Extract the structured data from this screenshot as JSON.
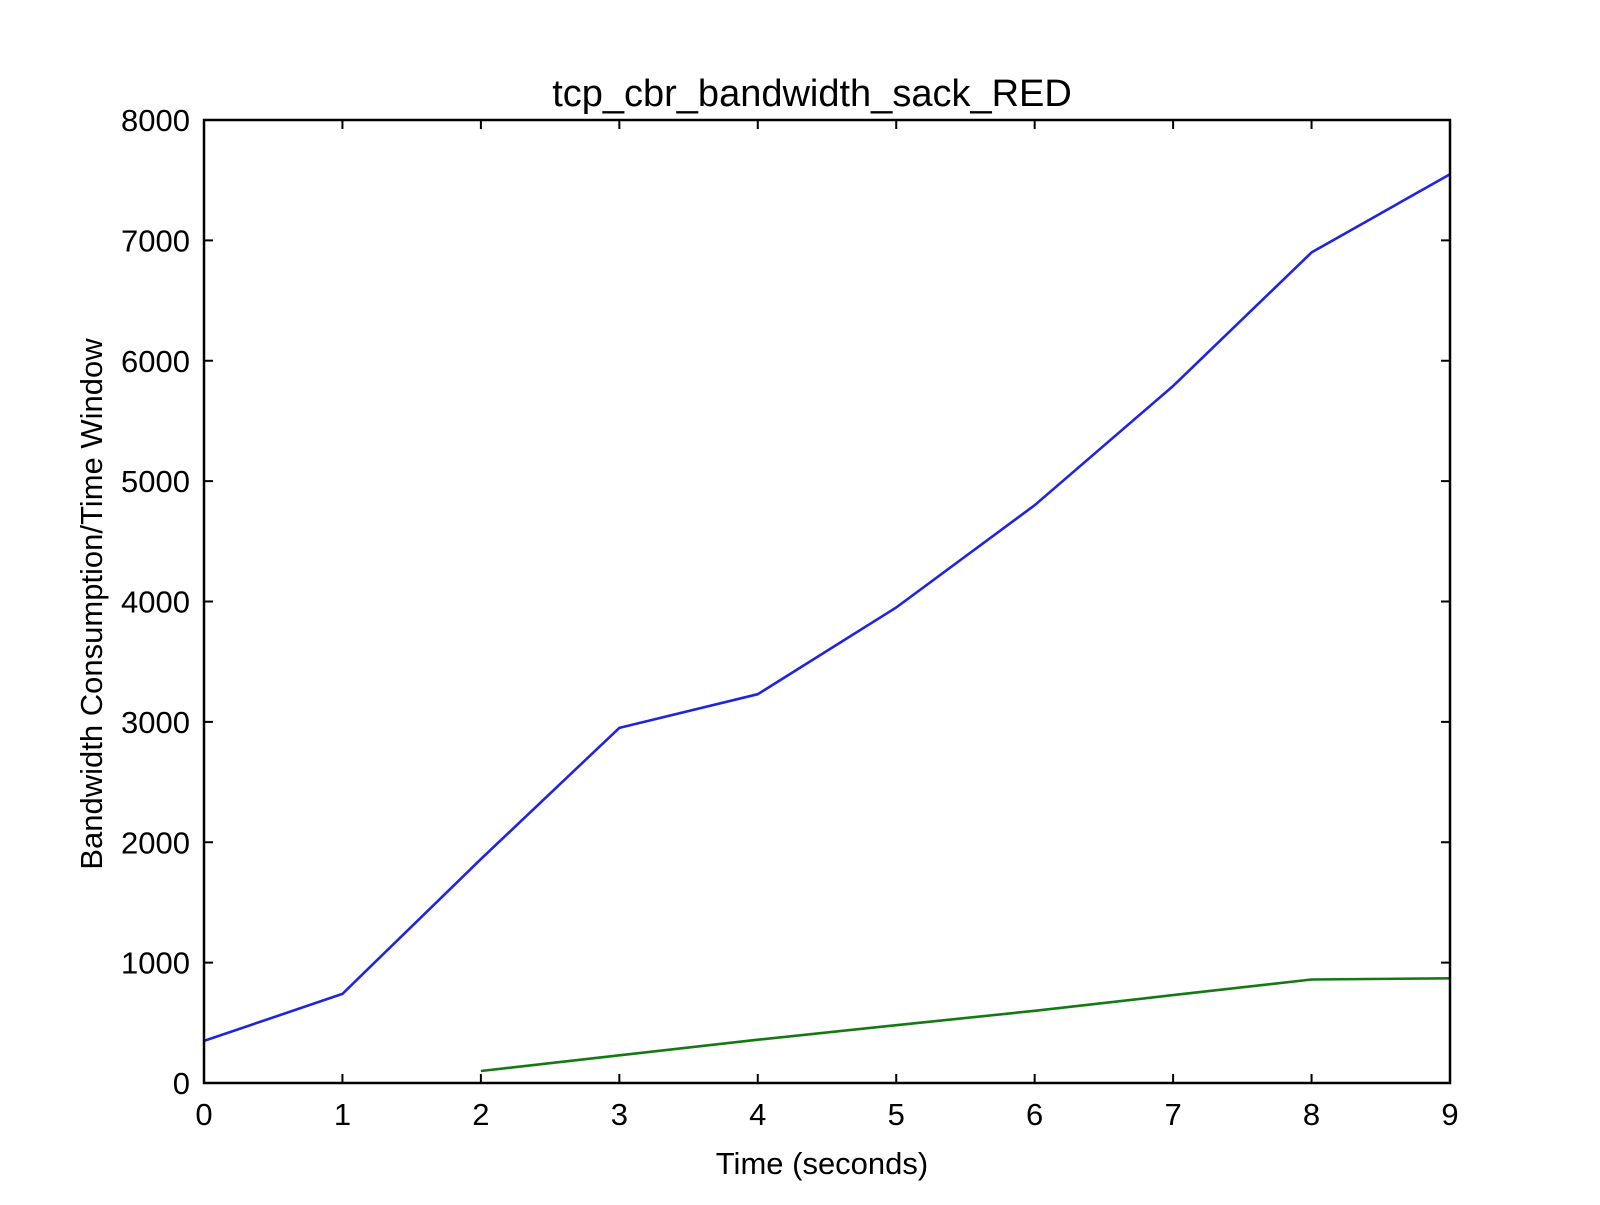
{
  "chart_data": {
    "type": "line",
    "title": "tcp_cbr_bandwidth_sack_RED",
    "xlabel": "Time (seconds)",
    "ylabel": "Bandwidth Consumption/Time Window",
    "xlim": [
      0,
      9
    ],
    "ylim": [
      0,
      8000
    ],
    "xticks": [
      "0",
      "1",
      "2",
      "3",
      "4",
      "5",
      "6",
      "7",
      "8",
      "9"
    ],
    "yticks": [
      "0",
      "1000",
      "2000",
      "3000",
      "4000",
      "5000",
      "6000",
      "7000",
      "8000"
    ],
    "grid": false,
    "legend": "none",
    "series": [
      {
        "color": "#1f24e0",
        "x": [
          0,
          1,
          2,
          3,
          4,
          5,
          6,
          7,
          8,
          9
        ],
        "y": [
          350,
          740,
          1860,
          2950,
          3230,
          3950,
          4800,
          5790,
          6900,
          7550
        ]
      },
      {
        "color": "#137a13",
        "x": [
          2,
          3,
          4,
          5,
          6,
          7,
          8,
          9
        ],
        "y": [
          100,
          230,
          360,
          480,
          600,
          730,
          860,
          870
        ]
      }
    ]
  }
}
